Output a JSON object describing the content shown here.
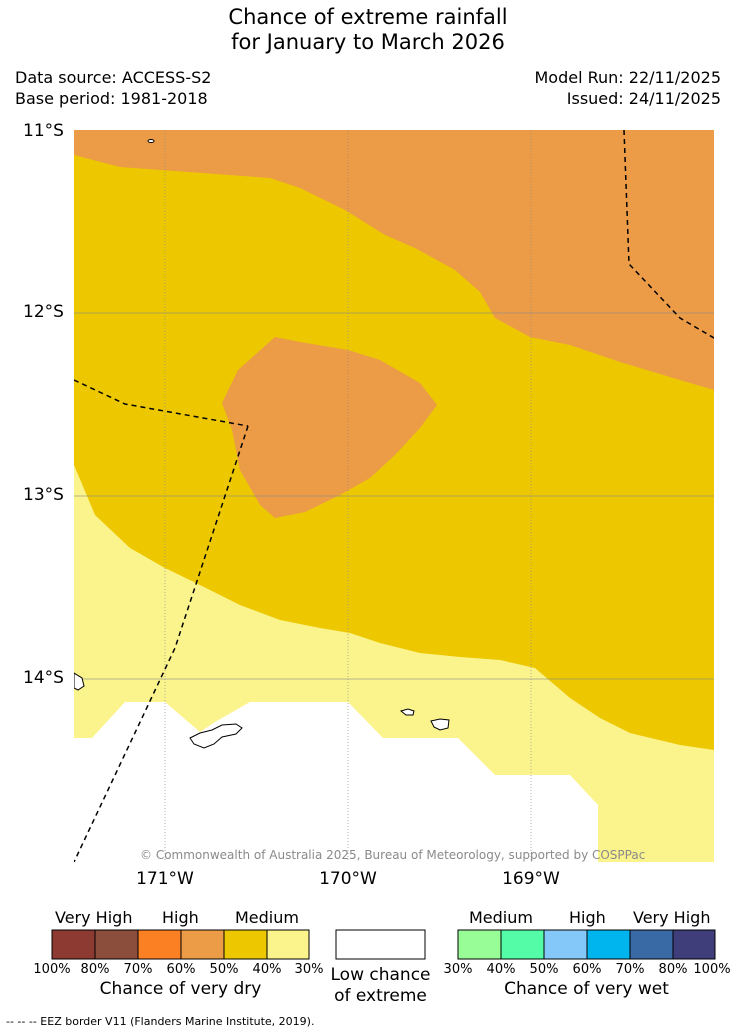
{
  "title_line1": "Chance of extreme rainfall",
  "title_line2": "for January to March 2026",
  "data_source": "Data source: ACCESS-S2",
  "base_period": "Base period: 1981-2018",
  "model_run": "Model Run: 22/11/2025",
  "issued": "Issued: 24/11/2025",
  "credit": "© Commonwealth of Australia 2025, Bureau of Meteorology, supported by COSPPac",
  "lat_labels": [
    "11°S",
    "12°S",
    "13°S",
    "14°S"
  ],
  "lon_labels": [
    "171°W",
    "170°W",
    "169°W"
  ],
  "colors": {
    "dry_80_100": "#8c3a32",
    "dry_70_80": "#8b4d3c",
    "dry_60_70": "#fb7f23",
    "dry_50_60": "#ec9b47",
    "dry_40_50": "#edc800",
    "dry_30_40": "#fbf48d",
    "low": "#ffffff",
    "wet_30_40": "#98fc97",
    "wet_40_50": "#55fca7",
    "wet_50_60": "#84c8fa",
    "wet_60_70": "#00b4ee",
    "wet_70_80": "#3a6aa6",
    "wet_80_100": "#3f3e7b"
  },
  "legend": {
    "dry_headers": [
      "Very High",
      "High",
      "Medium"
    ],
    "dry_ticks": [
      "100%",
      "80%",
      "70%",
      "60%",
      "50%",
      "40%",
      "30%"
    ],
    "dry_caption": "Chance of very dry",
    "low_caption_line1": "Low chance",
    "low_caption_line2": "of extreme",
    "wet_headers": [
      "Medium",
      "High",
      "Very High"
    ],
    "wet_ticks": [
      "30%",
      "40%",
      "50%",
      "60%",
      "70%",
      "80%",
      "100%"
    ],
    "wet_caption": "Chance of very wet"
  },
  "footnote": "--  --  -- EEZ border V11 (Flanders Marine Institute, 2019)."
}
